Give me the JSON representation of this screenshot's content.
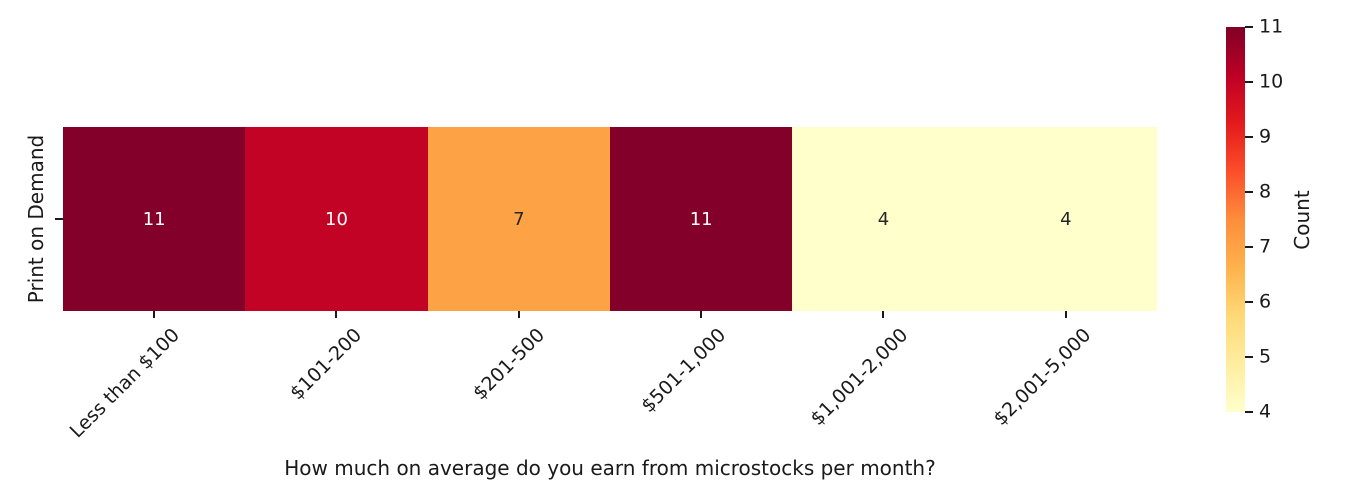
{
  "chart_data": {
    "type": "heatmap",
    "xlabel": "How much on average do you earn from microstocks per month?",
    "categories": [
      "Less than $100",
      "$101-200",
      "$201-500",
      "$501-1,000",
      "$1,001-2,000",
      "$2,001-5,000"
    ],
    "rows": [
      "Print on Demand"
    ],
    "values": [
      [
        11,
        10,
        7,
        11,
        4,
        4
      ]
    ],
    "vmin": 4,
    "vmax": 11,
    "colormap": "YlOrRd",
    "grid": false,
    "cells": [
      {
        "label": "11",
        "color": "#83002a",
        "text_color": "#ffffff"
      },
      {
        "label": "10",
        "color": "#c30325",
        "text_color": "#ffffff"
      },
      {
        "label": "7",
        "color": "#fda245",
        "text_color": "#262626"
      },
      {
        "label": "11",
        "color": "#83002a",
        "text_color": "#ffffff"
      },
      {
        "label": "4",
        "color": "#ffffcc",
        "text_color": "#262626"
      },
      {
        "label": "4",
        "color": "#ffffcc",
        "text_color": "#262626"
      }
    ],
    "colorbar": {
      "label": "Count",
      "position": "right",
      "ticks": [
        "11",
        "10",
        "9",
        "8",
        "7",
        "6",
        "5",
        "4"
      ],
      "gradient_top_to_bottom": [
        "#800026",
        "#bd0026",
        "#e31a1c",
        "#fc4e2a",
        "#fd8d3c",
        "#feb24c",
        "#fed976",
        "#ffeda0",
        "#ffffcc"
      ]
    }
  }
}
